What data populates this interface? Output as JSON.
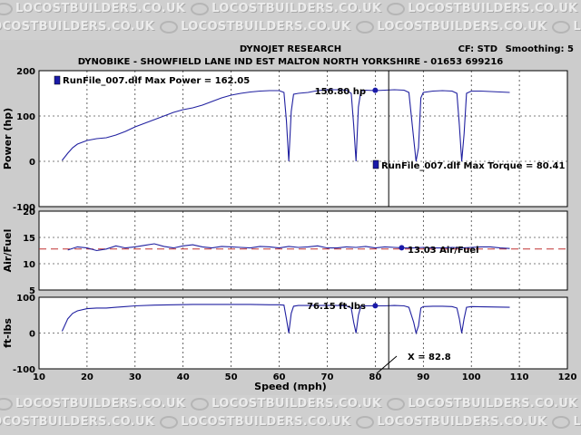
{
  "watermark": {
    "text": "LOCOSTBUILDERS.CO.UK"
  },
  "header": {
    "title": "DYNOJET RESEARCH",
    "subtitle": "DYNOBIKE - SHOWFIELD LANE IND EST MALTON NORTH YORKSHIRE - 01653 699216",
    "cf_label": "CF: STD",
    "smoothing_label": "Smoothing: 5"
  },
  "colors": {
    "trace": "#2020a0",
    "afr_target": "#c03030",
    "marker": "#1a1aa8",
    "plot_bg": "#ffffff"
  },
  "annotations": {
    "legend_power": "RunFile_007.dlf Max Power = 162.05",
    "legend_torque": "RunFile_007.dlf Max Torque = 80.41",
    "power_readout": "156.80 hp",
    "afr_readout": "13.03 Air/Fuel",
    "torque_readout": "76.15 ft-lbs",
    "cursor_readout": "X = 82.8"
  },
  "chart_data": [
    {
      "type": "line",
      "name": "power",
      "ylabel": "Power (hp)",
      "xlim": [
        10,
        120
      ],
      "ylim": [
        -100,
        200
      ],
      "y_ticks": [
        "200",
        "100",
        "0",
        "-100"
      ],
      "grid": true,
      "series": [
        {
          "name": "RunFile_007.dlf",
          "x": [
            14.8,
            16,
            17,
            18,
            20,
            22,
            24,
            26,
            28,
            30,
            32,
            34,
            36,
            38,
            40,
            42,
            44,
            46,
            48,
            50,
            52,
            54,
            56,
            58,
            60,
            61,
            61.5,
            62,
            62.5,
            63,
            64,
            66,
            68,
            70,
            72,
            74,
            75,
            75.5,
            76,
            76.5,
            77,
            78,
            80,
            82,
            84,
            86,
            87,
            88,
            88.5,
            89,
            89.5,
            90,
            92,
            94,
            96,
            97,
            97.5,
            98,
            98.5,
            99,
            100,
            102,
            104,
            106,
            108
          ],
          "y": [
            2,
            18,
            30,
            38,
            46,
            50,
            52,
            58,
            66,
            76,
            84,
            92,
            100,
            108,
            114,
            118,
            124,
            132,
            140,
            146,
            150,
            153,
            155,
            156,
            156,
            152,
            90,
            0,
            110,
            148,
            150,
            152,
            156,
            158,
            158,
            157,
            150,
            80,
            0,
            120,
            155,
            157,
            156,
            157,
            158,
            157,
            152,
            50,
            0,
            30,
            140,
            152,
            155,
            156,
            155,
            150,
            80,
            0,
            60,
            150,
            155,
            155,
            154,
            153,
            152
          ]
        }
      ],
      "cursor_x": 82.8,
      "marker": {
        "x": 80,
        "y": 156.8
      }
    },
    {
      "type": "line",
      "name": "afr",
      "ylabel": "Air/Fuel",
      "xlim": [
        10,
        120
      ],
      "ylim": [
        5,
        20
      ],
      "y_ticks": [
        "20",
        "15",
        "10",
        "5"
      ],
      "grid": true,
      "reference_line": 12.8,
      "series": [
        {
          "name": "RunFile_007.dlf",
          "x": [
            16,
            18,
            20,
            22,
            24,
            26,
            28,
            30,
            32,
            34,
            36,
            38,
            40,
            42,
            44,
            46,
            48,
            50,
            52,
            54,
            56,
            58,
            60,
            62,
            64,
            66,
            68,
            70,
            72,
            74,
            76,
            78,
            80,
            82,
            84,
            86,
            88,
            90,
            92,
            94,
            96,
            98,
            100,
            102,
            104,
            106,
            108
          ],
          "y": [
            12.6,
            13.2,
            13.0,
            12.5,
            12.8,
            13.4,
            13.0,
            13.2,
            13.5,
            13.8,
            13.3,
            13.0,
            13.4,
            13.6,
            13.2,
            13.0,
            13.3,
            13.2,
            13.1,
            13.0,
            13.3,
            13.2,
            13.0,
            13.3,
            13.1,
            13.2,
            13.4,
            13.0,
            13.0,
            13.2,
            13.1,
            13.3,
            13.0,
            13.2,
            13.1,
            13.0,
            13.0,
            13.1,
            13.0,
            13.0,
            13.1,
            13.0,
            13.1,
            13.2,
            13.2,
            13.0,
            12.9
          ]
        }
      ],
      "marker": {
        "x": 85.5,
        "y": 13.03
      }
    },
    {
      "type": "line",
      "name": "torque",
      "ylabel": "ft-lbs",
      "xlabel": "Speed (mph)",
      "xlim": [
        10,
        120
      ],
      "ylim": [
        -100,
        100
      ],
      "x_ticks": [
        "10",
        "20",
        "30",
        "40",
        "50",
        "60",
        "70",
        "80",
        "90",
        "100",
        "110",
        "120"
      ],
      "y_ticks": [
        "100",
        "0",
        "-100"
      ],
      "grid": true,
      "series": [
        {
          "name": "RunFile_007.dlf",
          "x": [
            14.8,
            16,
            17,
            18,
            20,
            22,
            24,
            26,
            28,
            30,
            34,
            38,
            42,
            46,
            50,
            54,
            58,
            60,
            61,
            61.5,
            62,
            62.5,
            63,
            64,
            68,
            72,
            74,
            75,
            75.5,
            76,
            76.5,
            77,
            78,
            80,
            82,
            84,
            86,
            87,
            88,
            88.5,
            89,
            89.5,
            90,
            92,
            94,
            96,
            97,
            97.5,
            98,
            98.5,
            99,
            100,
            104,
            108
          ],
          "y": [
            5,
            40,
            55,
            62,
            68,
            70,
            70,
            72,
            74,
            76,
            78,
            79,
            80,
            80,
            80,
            80,
            79,
            79,
            78,
            40,
            0,
            55,
            75,
            77,
            77,
            77,
            76,
            70,
            30,
            0,
            50,
            75,
            76,
            76,
            76,
            77,
            76,
            72,
            30,
            0,
            20,
            70,
            74,
            75,
            75,
            74,
            70,
            40,
            0,
            40,
            72,
            74,
            73,
            72
          ]
        }
      ],
      "cursor_x": 82.8,
      "marker": {
        "x": 80,
        "y": 76.15
      }
    }
  ]
}
